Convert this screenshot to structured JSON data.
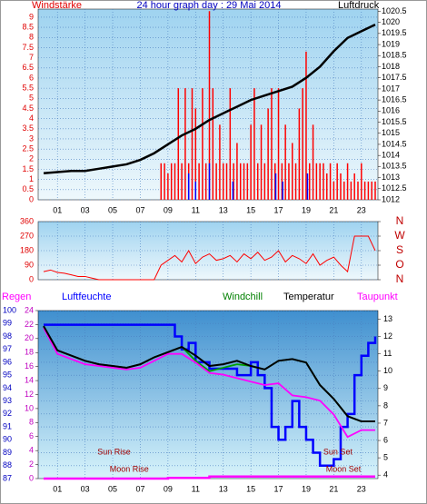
{
  "chart_data": [
    {
      "type": "wind_pressure",
      "title": "24 hour graph day : 29 Mai 2014",
      "y_label": "Windstärke",
      "y2_label": "Luftdruck",
      "xlim": [
        0,
        24
      ],
      "xticks": [
        {
          "value": 1,
          "label": "01"
        },
        {
          "value": 3,
          "label": "03"
        },
        {
          "value": 5,
          "label": "05"
        },
        {
          "value": 7,
          "label": "07"
        },
        {
          "value": 9,
          "label": "09"
        },
        11,
        13,
        15,
        17,
        19,
        21,
        23
      ],
      "ylim": [
        0,
        9.4
      ],
      "yticks": [
        0,
        0.5,
        1,
        1.5,
        2,
        2.5,
        3,
        3.5,
        4,
        4.5,
        5,
        5.5,
        6,
        6.5,
        7,
        7.5,
        8,
        8.5,
        9
      ],
      "y2lim": [
        1012,
        1020.6
      ],
      "y2ticks": [
        1012,
        1012.5,
        1013,
        1013.5,
        1014,
        1014.5,
        1015,
        1015.5,
        1016,
        1016.5,
        1017,
        1017.5,
        1018,
        1018.5,
        1019,
        1019.5,
        1020,
        1020.5
      ],
      "grid": true,
      "series": [
        {
          "kind": "bar",
          "color": "#ff0000",
          "x": [
            8.5,
            8.75,
            9,
            9.25,
            9.5,
            9.75,
            10,
            10.25,
            10.5,
            10.75,
            11,
            11.25,
            11.5,
            11.75,
            12,
            12.25,
            12.5,
            12.75,
            13,
            13.25,
            13.5,
            13.75,
            14,
            14.25,
            14.5,
            14.75,
            15,
            15.25,
            15.5,
            15.75,
            16,
            16.25,
            16.5,
            16.75,
            17,
            17.25,
            17.5,
            17.75,
            18,
            18.25,
            18.5,
            18.75,
            19,
            19.25,
            19.5,
            19.75,
            20,
            20.25,
            20.5,
            20.75,
            21,
            21.25,
            21.5,
            21.75,
            22,
            22.25,
            22.5,
            22.75,
            23,
            23.25,
            23.5,
            23.75,
            24
          ],
          "values": [
            1.8,
            1.8,
            1.3,
            1.8,
            1.8,
            5.5,
            1.8,
            5.5,
            1.8,
            5.5,
            4.5,
            1.8,
            5.5,
            1.8,
            9.3,
            5.5,
            1.8,
            3.7,
            1.8,
            1.8,
            5.5,
            1.8,
            2.8,
            1.8,
            1.8,
            1.8,
            3.7,
            5.5,
            1.8,
            3.7,
            1.8,
            4.5,
            5.5,
            1.8,
            5.5,
            1.8,
            3.7,
            1.8,
            2.8,
            1.8,
            4.5,
            5.5,
            7.3,
            1.8,
            3.7,
            1.8,
            1.8,
            1.8,
            1.3,
            1.8,
            0.9,
            1.8,
            1.3,
            0.9,
            1.8,
            0.9,
            1.3,
            0.9,
            1.8,
            0.9,
            0.9,
            0.9,
            0.9
          ]
        },
        {
          "kind": "bar",
          "color": "#0000ff",
          "x": [
            10.5,
            11,
            12,
            13.7,
            16.8,
            17.3,
            19.1
          ],
          "values": [
            1.3,
            0.9,
            1.8,
            0.9,
            1.3,
            0.9,
            1.3
          ]
        },
        {
          "kind": "line",
          "axis": "y2",
          "color": "#000000",
          "x": [
            0,
            1,
            2,
            3,
            4,
            5,
            6,
            7,
            8,
            9,
            10,
            11,
            12,
            13,
            14,
            15,
            16,
            17,
            18,
            19,
            20,
            21,
            22,
            23,
            24
          ],
          "values": [
            1013.2,
            1013.25,
            1013.3,
            1013.3,
            1013.4,
            1013.5,
            1013.6,
            1013.8,
            1014.1,
            1014.5,
            1014.9,
            1015.2,
            1015.6,
            1015.9,
            1016.2,
            1016.5,
            1016.7,
            1016.9,
            1017.1,
            1017.5,
            1018,
            1018.7,
            1019.3,
            1019.6,
            1019.9
          ]
        }
      ]
    },
    {
      "type": "direction",
      "xlim": [
        0,
        24
      ],
      "xticks": [
        1,
        3,
        5,
        7,
        9,
        11,
        13,
        15,
        17,
        19,
        21,
        23
      ],
      "ylim": [
        0,
        360
      ],
      "yticks": [
        0,
        90,
        180,
        270,
        360
      ],
      "y2lim": [
        0,
        360
      ],
      "y2ticks": [
        {
          "value": 360,
          "label": "N"
        },
        {
          "value": 270,
          "label": "W"
        },
        {
          "value": 180,
          "label": "S"
        },
        {
          "value": 90,
          "label": "O"
        },
        {
          "value": 0,
          "label": "N"
        }
      ],
      "grid": true,
      "series": [
        {
          "kind": "line",
          "color": "#ff0000",
          "x": [
            0,
            0.5,
            1,
            1.5,
            2,
            2.5,
            3,
            3.5,
            4,
            4.5,
            5,
            5.5,
            6,
            6.5,
            7,
            7.5,
            8,
            8.5,
            9,
            9.5,
            10,
            10.5,
            11,
            11.5,
            12,
            12.5,
            13,
            13.5,
            14,
            14.5,
            15,
            15.5,
            16,
            16.5,
            17,
            17.5,
            18,
            18.5,
            19,
            19.5,
            20,
            20.5,
            21,
            21.5,
            22,
            22.5,
            23,
            23.5,
            24
          ],
          "values": [
            50,
            60,
            45,
            40,
            30,
            20,
            20,
            10,
            0,
            0,
            0,
            0,
            0,
            0,
            0,
            0,
            0,
            90,
            120,
            150,
            110,
            180,
            100,
            140,
            160,
            120,
            130,
            150,
            110,
            160,
            130,
            170,
            120,
            140,
            180,
            110,
            150,
            130,
            100,
            160,
            90,
            120,
            140,
            90,
            50,
            270,
            270,
            270,
            180
          ]
        }
      ]
    },
    {
      "type": "climate",
      "labels": [
        "Regen",
        "Luftfeuchte",
        "Windchill",
        "Temperatur",
        "Taupunkt"
      ],
      "xlim": [
        0,
        24
      ],
      "xticks": [
        {
          "value": 1,
          "label": "01"
        },
        {
          "value": 3,
          "label": "03"
        },
        {
          "value": 5,
          "label": "05"
        },
        {
          "value": 7,
          "label": "07"
        },
        {
          "value": 9,
          "label": "09"
        },
        11,
        13,
        15,
        17,
        19,
        21,
        23
      ],
      "ylim": [
        87,
        100
      ],
      "yticks": [
        87,
        88,
        89,
        90,
        91,
        92,
        93,
        94,
        95,
        96,
        97,
        98,
        99,
        100
      ],
      "rain_lim": [
        0,
        24
      ],
      "rain_ticks": [
        0,
        2,
        4,
        6,
        8,
        10,
        12,
        14,
        16,
        18,
        20,
        22,
        24
      ],
      "y2lim": [
        3.8,
        13.5
      ],
      "y2ticks": [
        4,
        5,
        6,
        7,
        8,
        9,
        10,
        11,
        12,
        13
      ],
      "grid": true,
      "series": [
        {
          "name": "Luftfeuchte",
          "kind": "step",
          "axis": "y",
          "color": "#0000ff",
          "x": [
            0,
            9.3,
            9.5,
            10,
            10.5,
            11,
            12,
            13,
            14,
            15,
            15.5,
            16,
            16.5,
            17,
            17.5,
            18,
            18.5,
            19,
            19.5,
            20,
            20.5,
            21,
            21.5,
            22,
            22.5,
            23,
            23.5,
            24
          ],
          "values": [
            98.9,
            98.9,
            98,
            97,
            97.5,
            96,
            95.5,
            95.5,
            95,
            96,
            95,
            94,
            91,
            90,
            91,
            93,
            91,
            90,
            89,
            88,
            88,
            88.5,
            91,
            92,
            95,
            96.5,
            97.5,
            98
          ]
        },
        {
          "name": "Regen",
          "kind": "step",
          "axis": "rain",
          "color": "#ff00ff",
          "x": [
            0,
            9,
            12,
            24
          ],
          "values": [
            0,
            0.1,
            0.3,
            0.3
          ]
        },
        {
          "name": "Windchill",
          "kind": "line",
          "axis": "y2",
          "color": "#00a000",
          "x": [
            0,
            1,
            2,
            3,
            4,
            5,
            6,
            7,
            8,
            9,
            10,
            11,
            12,
            13,
            14,
            15,
            16,
            17,
            18,
            19,
            20,
            21,
            22,
            23,
            24
          ],
          "values": [
            12.6,
            11.2,
            10.9,
            10.6,
            10.4,
            10.3,
            10.2,
            10.4,
            10.8,
            11.1,
            11.4,
            10.6,
            10,
            10.2,
            10.4,
            10.3,
            10.1,
            10.6,
            10.7,
            10.5,
            9.2,
            8.4,
            7.4,
            7.1,
            7.1
          ]
        },
        {
          "name": "Taupunkt",
          "kind": "line",
          "axis": "y2",
          "color": "#ff00ff",
          "x": [
            0,
            1,
            2,
            3,
            4,
            5,
            6,
            7,
            8,
            9,
            10,
            11,
            12,
            13,
            14,
            15,
            16,
            17,
            18,
            19,
            20,
            21,
            22,
            23,
            24
          ],
          "values": [
            12.5,
            11,
            10.7,
            10.4,
            10.3,
            10.2,
            10.1,
            10.2,
            10.6,
            11,
            11,
            10.5,
            9.9,
            9.8,
            9.6,
            9.4,
            9.2,
            9.3,
            8.6,
            8.5,
            8.3,
            7.5,
            6.2,
            6.6,
            6.6
          ]
        },
        {
          "name": "Temperatur",
          "kind": "line",
          "axis": "y2",
          "color": "#000000",
          "x": [
            0,
            1,
            2,
            3,
            4,
            5,
            6,
            7,
            8,
            9,
            10,
            11,
            12,
            13,
            14,
            15,
            16,
            17,
            18,
            19,
            20,
            21,
            22,
            23,
            24
          ],
          "values": [
            12.6,
            11.2,
            10.9,
            10.6,
            10.4,
            10.3,
            10.2,
            10.4,
            10.8,
            11.1,
            11.4,
            10.9,
            10.3,
            10.4,
            10.6,
            10.3,
            10.1,
            10.6,
            10.7,
            10.5,
            9.2,
            8.4,
            7.4,
            7.1,
            7.1
          ]
        }
      ],
      "annotations": [
        {
          "text": "Sun Rise",
          "x": 5.1
        },
        {
          "text": "Moon Rise",
          "x": 6.2
        },
        {
          "text": "Sun Set",
          "x": 21.3
        },
        {
          "text": "Moon Set",
          "x": 21.7
        }
      ]
    }
  ]
}
